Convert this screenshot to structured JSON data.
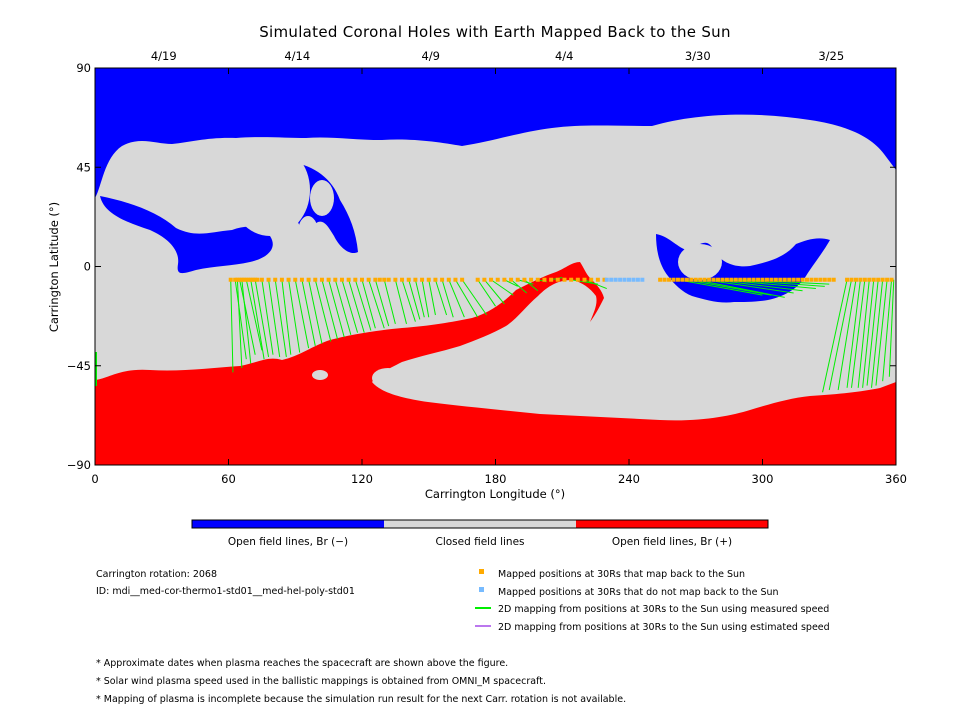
{
  "chart_data": {
    "type": "map",
    "title": "Simulated Coronal Holes with Earth Mapped Back to the Sun",
    "xlabel": "Carrington Longitude (°)",
    "ylabel": "Carrington Latitude (°)",
    "xlim": [
      0,
      360
    ],
    "ylim": [
      -90,
      90
    ],
    "x_ticks": [
      "0",
      "60",
      "120",
      "180",
      "240",
      "300",
      "360"
    ],
    "y_ticks": [
      "90",
      "45",
      "0",
      "−45",
      "−90"
    ],
    "top_date_ticks": [
      {
        "lon": 30,
        "label": "4/19"
      },
      {
        "lon": 90,
        "label": "4/14"
      },
      {
        "lon": 150,
        "label": "4/9"
      },
      {
        "lon": 210,
        "label": "4/4"
      },
      {
        "lon": 270,
        "label": "3/30"
      },
      {
        "lon": 330,
        "label": "3/25"
      }
    ],
    "colors": {
      "open_negative": "#0000ff",
      "closed": "#d8d8d8",
      "open_positive": "#ff0000",
      "mapped": "#ffaa00",
      "not_mapped": "#77bbff",
      "measured_line": "#00ee00",
      "estimated_line": "#bb77ee"
    },
    "colorbar": [
      {
        "label": "Open field lines, Br (−)",
        "color": "#0000ff"
      },
      {
        "label": "Closed field lines",
        "color": "#d8d8d8"
      },
      {
        "label": "Open field lines, Br (+)",
        "color": "#ff0000"
      }
    ],
    "mapped_points_lat": -6,
    "mapped_lon": [
      61,
      63,
      64,
      65,
      66,
      67,
      68,
      69,
      70,
      71,
      72,
      73,
      75,
      78,
      81,
      84,
      87,
      90,
      93,
      96,
      99,
      102,
      105,
      108,
      111,
      114,
      117,
      120,
      123,
      126,
      128,
      130,
      132,
      135,
      138,
      141,
      144,
      147,
      150,
      153,
      156,
      159,
      162,
      165,
      172,
      175,
      178,
      181,
      184,
      187,
      190,
      193,
      196,
      199,
      202,
      205,
      208,
      211,
      214,
      217,
      220,
      223,
      226,
      229,
      254,
      256,
      258,
      260,
      262,
      264,
      266,
      268,
      270,
      272,
      274,
      276,
      278,
      280,
      282,
      284,
      286,
      288,
      290,
      292,
      294,
      296,
      298,
      300,
      302,
      304,
      306,
      308,
      310,
      312,
      314,
      316,
      318,
      320,
      322,
      324,
      326,
      328,
      330,
      332,
      338,
      340,
      342,
      344,
      346,
      348,
      350,
      352,
      354,
      356,
      358
    ],
    "not_mapped_lon": [
      230,
      232,
      234,
      236,
      238,
      240,
      242,
      244,
      246
    ],
    "field_line_connections": [
      [
        61,
        -6,
        62,
        -48
      ],
      [
        63,
        -6,
        68,
        -42
      ],
      [
        64,
        -6,
        66,
        -46
      ],
      [
        65,
        -6,
        72,
        -40
      ],
      [
        66,
        -6,
        70,
        -44
      ],
      [
        68,
        -6,
        75,
        -38
      ],
      [
        70,
        -6,
        76,
        -42
      ],
      [
        72,
        -6,
        78,
        -41
      ],
      [
        75,
        -6,
        80,
        -40
      ],
      [
        78,
        -6,
        83,
        -41
      ],
      [
        81,
        -6,
        86,
        -41
      ],
      [
        84,
        -6,
        88,
        -40
      ],
      [
        87,
        -6,
        92,
        -39
      ],
      [
        90,
        -6,
        96,
        -37
      ],
      [
        93,
        -6,
        99,
        -36
      ],
      [
        96,
        -6,
        102,
        -35
      ],
      [
        99,
        -6,
        106,
        -34
      ],
      [
        102,
        -6,
        109,
        -33
      ],
      [
        105,
        -6,
        112,
        -32
      ],
      [
        108,
        -6,
        115,
        -31
      ],
      [
        111,
        -6,
        118,
        -30
      ],
      [
        114,
        -6,
        121,
        -30
      ],
      [
        117,
        -6,
        124,
        -29
      ],
      [
        120,
        -6,
        126,
        -28
      ],
      [
        123,
        -6,
        130,
        -28
      ],
      [
        126,
        -6,
        132,
        -27
      ],
      [
        130,
        -6,
        135,
        -26
      ],
      [
        135,
        -6,
        140,
        -26
      ],
      [
        138,
        -6,
        144,
        -25
      ],
      [
        141,
        -6,
        146,
        -24
      ],
      [
        144,
        -6,
        148,
        -23
      ],
      [
        147,
        -6,
        150,
        -23
      ],
      [
        150,
        -6,
        153,
        -22
      ],
      [
        153,
        -6,
        158,
        -22
      ],
      [
        156,
        -6,
        161,
        -23
      ],
      [
        159,
        -6,
        166,
        -23
      ],
      [
        162,
        -6,
        172,
        -23
      ],
      [
        165,
        -6,
        176,
        -22
      ],
      [
        172,
        -6,
        180,
        -18
      ],
      [
        175,
        -6,
        184,
        -17
      ],
      [
        178,
        -6,
        188,
        -13
      ],
      [
        184,
        -6,
        190,
        -9
      ],
      [
        187,
        -6,
        194,
        -12
      ],
      [
        190,
        -6,
        197,
        -8
      ],
      [
        193,
        -6,
        199,
        -11
      ],
      [
        199,
        -6,
        203,
        -7
      ],
      [
        205,
        -6,
        210,
        -5
      ],
      [
        214,
        -6,
        226,
        -8
      ],
      [
        220,
        -6,
        230,
        -10
      ],
      [
        262,
        -6,
        300,
        -13
      ],
      [
        266,
        -6,
        304,
        -13
      ],
      [
        270,
        -6,
        310,
        -14
      ],
      [
        274,
        -6,
        314,
        -12
      ],
      [
        278,
        -6,
        318,
        -11
      ],
      [
        282,
        -6,
        324,
        -10
      ],
      [
        286,
        -6,
        328,
        -9
      ],
      [
        290,
        -6,
        330,
        -8
      ],
      [
        338,
        -6,
        327,
        -57
      ],
      [
        340,
        -6,
        330,
        -56
      ],
      [
        342,
        -6,
        334,
        -56
      ],
      [
        344,
        -6,
        338,
        -55
      ],
      [
        346,
        -6,
        340,
        -55
      ],
      [
        348,
        -6,
        343,
        -55
      ],
      [
        350,
        -6,
        345,
        -55
      ],
      [
        352,
        -6,
        347,
        -54
      ],
      [
        354,
        -6,
        349,
        -55
      ],
      [
        356,
        -6,
        351,
        -54
      ],
      [
        358,
        -6,
        354,
        -52
      ],
      [
        359,
        -6,
        357,
        -50
      ]
    ],
    "legend_placement": "bottom",
    "grid": false
  },
  "info": {
    "rotation": "Carrington rotation: 2068",
    "run_id": "ID: mdi__med-cor-thermo1-std01__med-hel-poly-std01"
  },
  "legend": [
    {
      "label": "Mapped positions at 30Rs that map back to the Sun",
      "kind": "mapped-square"
    },
    {
      "label": "Mapped positions at 30Rs that do not map back to the Sun",
      "kind": "not-mapped-square"
    },
    {
      "label": "2D mapping from positions at 30Rs to the Sun using measured speed",
      "kind": "measured-line"
    },
    {
      "label": "2D mapping from positions at 30Rs to the Sun using estimated speed",
      "kind": "estimated-line"
    }
  ],
  "notes": [
    "* Approximate dates when plasma reaches the spacecraft are shown above the figure.",
    "* Solar wind plasma speed used in the ballistic mappings is obtained from OMNI_M spacecraft.",
    "* Mapping of plasma is incomplete because the simulation run result for the next Carr. rotation is not available."
  ]
}
